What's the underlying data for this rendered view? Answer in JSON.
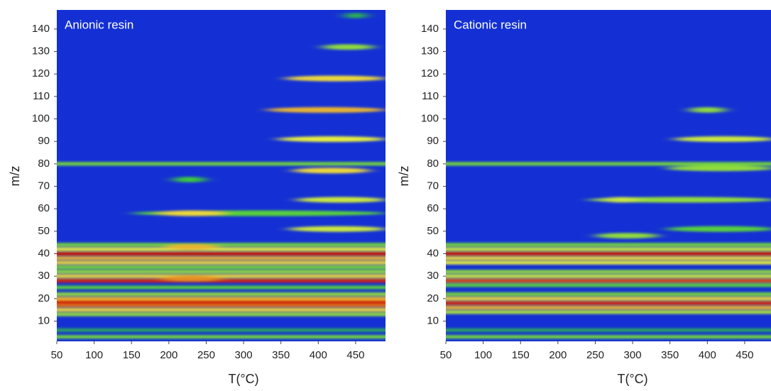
{
  "chart_data": [
    {
      "type": "heatmap",
      "annotation": "Anionic resin",
      "xlabel": "T(°C)",
      "ylabel": "m/z",
      "xlim": [
        50,
        490
      ],
      "ylim": [
        1,
        148.5
      ],
      "xticks": [
        50,
        100,
        150,
        200,
        250,
        300,
        350,
        400,
        450
      ],
      "yticks": [
        10,
        20,
        30,
        40,
        50,
        60,
        70,
        80,
        90,
        100,
        110,
        120,
        130,
        140
      ],
      "colorscale": [
        "#1430d4",
        "#30c83c",
        "#f0f040",
        "#d00000"
      ],
      "bands": [
        {
          "mz": 3,
          "t": [
            50,
            490
          ],
          "value": 0.45
        },
        {
          "mz": 6,
          "t": [
            50,
            490
          ],
          "value": 0.25
        },
        {
          "mz": 13,
          "t": [
            50,
            490
          ],
          "value": 0.5
        },
        {
          "mz": 15,
          "t": [
            50,
            490
          ],
          "value": 0.7
        },
        {
          "mz": 17,
          "t": [
            50,
            490
          ],
          "value": 0.85
        },
        {
          "mz": 18.5,
          "t": [
            50,
            490
          ],
          "value": 1
        },
        {
          "mz": 20,
          "t": [
            50,
            490
          ],
          "value": 0.75
        },
        {
          "mz": 22,
          "t": [
            50,
            490
          ],
          "value": 0.5
        },
        {
          "mz": 25,
          "t": [
            50,
            490
          ],
          "value": 0.4
        },
        {
          "mz": 28,
          "t": [
            50,
            490
          ],
          "value": 0.95
        },
        {
          "mz": 30,
          "t": [
            50,
            490
          ],
          "value": 0.7
        },
        {
          "mz": 32,
          "t": [
            50,
            490
          ],
          "value": 0.5
        },
        {
          "mz": 34,
          "t": [
            50,
            490
          ],
          "value": 0.45
        },
        {
          "mz": 36,
          "t": [
            50,
            490
          ],
          "value": 0.7
        },
        {
          "mz": 38,
          "t": [
            50,
            490
          ],
          "value": 0.75
        },
        {
          "mz": 40,
          "t": [
            50,
            490
          ],
          "value": 1
        },
        {
          "mz": 42,
          "t": [
            50,
            490
          ],
          "value": 0.65
        },
        {
          "mz": 44,
          "t": [
            50,
            490
          ],
          "value": 0.45
        },
        {
          "mz": 80,
          "t": [
            50,
            490
          ],
          "value": 0.45
        },
        {
          "mz": 43,
          "t": [
            195,
            265
          ],
          "value": 0.75
        },
        {
          "mz": 29,
          "t": [
            190,
            270
          ],
          "value": 0.8
        },
        {
          "mz": 58,
          "t": [
            150,
            490
          ],
          "value": 0.4
        },
        {
          "mz": 58,
          "t": [
            185,
            275
          ],
          "value": 0.7
        },
        {
          "mz": 73,
          "t": [
            205,
            250
          ],
          "value": 0.35
        },
        {
          "mz": 51,
          "t": [
            360,
            490
          ],
          "value": 0.6
        },
        {
          "mz": 64,
          "t": [
            370,
            490
          ],
          "value": 0.6
        },
        {
          "mz": 77,
          "t": [
            365,
            470
          ],
          "value": 0.7
        },
        {
          "mz": 91,
          "t": [
            345,
            490
          ],
          "value": 0.65
        },
        {
          "mz": 104,
          "t": [
            330,
            490
          ],
          "value": 0.75
        },
        {
          "mz": 118,
          "t": [
            355,
            490
          ],
          "value": 0.7
        },
        {
          "mz": 132,
          "t": [
            405,
            475
          ],
          "value": 0.5
        },
        {
          "mz": 146,
          "t": [
            435,
            465
          ],
          "value": 0.3
        }
      ]
    },
    {
      "type": "heatmap",
      "annotation": "Cationic resin",
      "xlabel": "T(°C)",
      "ylabel": "m/z",
      "xlim": [
        50,
        490
      ],
      "ylim": [
        1,
        148.5
      ],
      "xticks": [
        50,
        100,
        150,
        200,
        250,
        300,
        350,
        400,
        450
      ],
      "yticks": [
        10,
        20,
        30,
        40,
        50,
        60,
        70,
        80,
        90,
        100,
        110,
        120,
        130,
        140
      ],
      "colorscale": [
        "#1430d4",
        "#30c83c",
        "#f0f040",
        "#d00000"
      ],
      "bands": [
        {
          "mz": 3,
          "t": [
            50,
            490
          ],
          "value": 0.45
        },
        {
          "mz": 6,
          "t": [
            50,
            490
          ],
          "value": 0.25
        },
        {
          "mz": 14,
          "t": [
            50,
            490
          ],
          "value": 0.55
        },
        {
          "mz": 16,
          "t": [
            50,
            490
          ],
          "value": 0.75
        },
        {
          "mz": 18,
          "t": [
            50,
            490
          ],
          "value": 0.95
        },
        {
          "mz": 20,
          "t": [
            50,
            490
          ],
          "value": 0.7
        },
        {
          "mz": 22,
          "t": [
            50,
            490
          ],
          "value": 0.45
        },
        {
          "mz": 26,
          "t": [
            50,
            490
          ],
          "value": 0.4
        },
        {
          "mz": 28,
          "t": [
            50,
            490
          ],
          "value": 0.9
        },
        {
          "mz": 30,
          "t": [
            50,
            490
          ],
          "value": 0.6
        },
        {
          "mz": 32,
          "t": [
            50,
            490
          ],
          "value": 0.5
        },
        {
          "mz": 36,
          "t": [
            50,
            490
          ],
          "value": 0.65
        },
        {
          "mz": 38,
          "t": [
            50,
            490
          ],
          "value": 0.7
        },
        {
          "mz": 40,
          "t": [
            50,
            490
          ],
          "value": 1
        },
        {
          "mz": 42,
          "t": [
            50,
            490
          ],
          "value": 0.6
        },
        {
          "mz": 44,
          "t": [
            50,
            490
          ],
          "value": 0.45
        },
        {
          "mz": 80,
          "t": [
            50,
            490
          ],
          "value": 0.45
        },
        {
          "mz": 48,
          "t": [
            250,
            335
          ],
          "value": 0.5
        },
        {
          "mz": 51,
          "t": [
            345,
            490
          ],
          "value": 0.4
        },
        {
          "mz": 64,
          "t": [
            240,
            490
          ],
          "value": 0.5
        },
        {
          "mz": 64,
          "t": [
            260,
            310
          ],
          "value": 0.6
        },
        {
          "mz": 78,
          "t": [
            345,
            490
          ],
          "value": 0.5
        },
        {
          "mz": 91,
          "t": [
            355,
            490
          ],
          "value": 0.6
        },
        {
          "mz": 104,
          "t": [
            375,
            425
          ],
          "value": 0.5
        }
      ]
    }
  ]
}
